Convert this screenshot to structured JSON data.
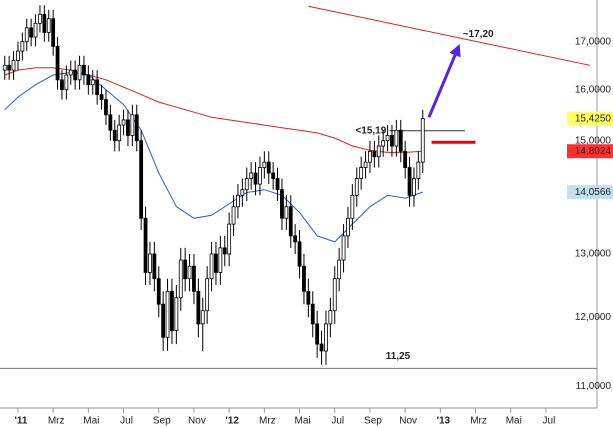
{
  "chart_data": {
    "type": "candlestick",
    "log_y": true,
    "xlim": [
      -1.02,
      32.9
    ],
    "ylim": [
      10.7,
      17.92
    ],
    "xticks": [
      {
        "value": 0,
        "label": "'11"
      },
      {
        "value": 2,
        "label": "Mrz"
      },
      {
        "value": 4,
        "label": "Mai"
      },
      {
        "value": 6,
        "label": "Jul"
      },
      {
        "value": 8,
        "label": "Sep"
      },
      {
        "value": 10,
        "label": "Nov"
      },
      {
        "value": 12,
        "label": "'12"
      },
      {
        "value": 14,
        "label": "Mrz"
      },
      {
        "value": 16,
        "label": "Mai"
      },
      {
        "value": 18,
        "label": "Jul"
      },
      {
        "value": 20,
        "label": "Sep"
      },
      {
        "value": 22,
        "label": "Nov"
      },
      {
        "value": 24,
        "label": "'13"
      },
      {
        "value": 26,
        "label": "Mrz"
      },
      {
        "value": 28,
        "label": "Mai"
      },
      {
        "value": 30,
        "label": "Jul"
      }
    ],
    "yticks": [
      {
        "value": 11,
        "label": "11,0000"
      },
      {
        "value": 12,
        "label": "12,0000"
      },
      {
        "value": 13,
        "label": "13,0000"
      },
      {
        "value": 14,
        "label": "14,0000"
      },
      {
        "value": 15,
        "label": "15,0000"
      },
      {
        "value": 16,
        "label": "16,0000"
      },
      {
        "value": 17,
        "label": "17,0000"
      }
    ],
    "x": [
      -0.75,
      -0.5,
      -0.25,
      0,
      0.25,
      0.5,
      0.75,
      1,
      1.25,
      1.5,
      1.75,
      2,
      2.25,
      2.5,
      2.75,
      3,
      3.25,
      3.5,
      3.75,
      4,
      4.25,
      4.5,
      4.75,
      5,
      5.25,
      5.5,
      5.75,
      6,
      6.25,
      6.5,
      6.75,
      7,
      7.25,
      7.5,
      7.75,
      8,
      8.25,
      8.5,
      8.75,
      9,
      9.25,
      9.5,
      9.75,
      10,
      10.25,
      10.5,
      10.75,
      11,
      11.25,
      11.5,
      11.75,
      12,
      12.25,
      12.5,
      12.75,
      13,
      13.25,
      13.5,
      13.75,
      14,
      14.25,
      14.5,
      14.75,
      15,
      15.25,
      15.5,
      15.75,
      16,
      16.25,
      16.5,
      16.75,
      17,
      17.25,
      17.5,
      17.75,
      18,
      18.25,
      18.5,
      18.75,
      19,
      19.25,
      19.5,
      19.75,
      20,
      20.25,
      20.5,
      20.75,
      21,
      21.25,
      21.5,
      21.75,
      22,
      22.25,
      22.5,
      22.75,
      23
    ],
    "open": [
      16.4,
      16.5,
      16.4,
      16.6,
      16.8,
      17.0,
      17.3,
      17.1,
      17.4,
      17.6,
      17.2,
      17.5,
      16.9,
      16.2,
      16.0,
      16.3,
      16.4,
      16.2,
      16.5,
      16.3,
      16.1,
      16.2,
      15.9,
      15.8,
      15.5,
      15.2,
      15.0,
      15.3,
      15.4,
      15.1,
      15.5,
      15.0,
      13.6,
      12.7,
      13.0,
      12.6,
      12.2,
      11.7,
      12.4,
      11.8,
      12.3,
      12.9,
      12.6,
      12.8,
      12.4,
      11.9,
      12.1,
      12.6,
      13.0,
      12.7,
      13.1,
      13.0,
      13.5,
      13.8,
      14.0,
      14.1,
      14.3,
      14.4,
      14.2,
      14.5,
      14.6,
      14.4,
      14.3,
      14.1,
      13.6,
      13.8,
      13.3,
      13.2,
      12.8,
      12.4,
      12.2,
      11.9,
      11.6,
      11.5,
      11.9,
      12.1,
      12.6,
      12.9,
      13.3,
      13.6,
      14.0,
      14.3,
      14.5,
      14.6,
      14.8,
      14.7,
      14.9,
      15.0,
      15.1,
      14.9,
      15.2,
      14.8,
      14.5,
      14.0,
      14.3,
      14.6
    ],
    "high": [
      16.7,
      16.7,
      16.8,
      17.0,
      17.2,
      17.5,
      17.5,
      17.6,
      17.8,
      17.8,
      17.7,
      17.7,
      17.1,
      16.4,
      16.5,
      16.6,
      16.6,
      16.7,
      16.7,
      16.5,
      16.4,
      16.4,
      16.1,
      16.0,
      15.7,
      15.4,
      15.5,
      15.6,
      15.6,
      15.7,
      15.7,
      15.2,
      13.8,
      13.2,
      13.2,
      12.8,
      12.4,
      12.6,
      12.6,
      12.5,
      13.1,
      13.1,
      13.0,
      13.0,
      12.6,
      12.3,
      12.8,
      13.2,
      13.2,
      13.3,
      13.3,
      13.7,
      14.0,
      14.2,
      14.3,
      14.5,
      14.6,
      14.6,
      14.7,
      14.8,
      14.8,
      14.6,
      14.5,
      14.3,
      14.0,
      14.0,
      13.5,
      13.4,
      13.0,
      12.6,
      12.4,
      12.1,
      11.8,
      12.1,
      12.3,
      12.8,
      13.1,
      13.5,
      13.8,
      14.2,
      14.5,
      14.7,
      14.8,
      15.0,
      15.0,
      15.1,
      15.2,
      15.3,
      15.3,
      15.4,
      15.4,
      15.0,
      14.7,
      14.5,
      14.8,
      15.6
    ],
    "low": [
      16.2,
      16.2,
      16.2,
      16.4,
      16.6,
      16.8,
      16.9,
      16.9,
      17.2,
      17.0,
      17.0,
      16.7,
      16.0,
      15.8,
      15.8,
      16.1,
      16.0,
      16.0,
      16.1,
      15.9,
      15.9,
      15.7,
      15.6,
      15.3,
      15.0,
      14.8,
      14.8,
      15.1,
      14.9,
      14.9,
      14.8,
      13.4,
      12.5,
      12.5,
      12.4,
      12.0,
      11.5,
      11.5,
      11.6,
      11.6,
      12.1,
      12.4,
      12.4,
      12.2,
      11.7,
      11.5,
      11.9,
      12.4,
      12.5,
      12.5,
      12.8,
      12.8,
      13.3,
      13.6,
      13.8,
      13.9,
      14.1,
      14.0,
      14.0,
      14.3,
      14.2,
      14.1,
      13.9,
      13.4,
      13.4,
      13.1,
      13.0,
      12.6,
      12.2,
      12.0,
      11.7,
      11.4,
      11.3,
      11.3,
      11.7,
      11.9,
      12.4,
      12.7,
      13.1,
      13.4,
      13.8,
      14.1,
      14.3,
      14.4,
      14.5,
      14.5,
      14.7,
      14.8,
      14.7,
      14.7,
      14.6,
      14.3,
      13.8,
      13.8,
      14.1,
      14.4
    ],
    "close": [
      16.5,
      16.4,
      16.6,
      16.8,
      17.0,
      17.3,
      17.1,
      17.4,
      17.6,
      17.2,
      17.5,
      16.9,
      16.2,
      16.0,
      16.3,
      16.4,
      16.2,
      16.5,
      16.3,
      16.1,
      16.2,
      15.9,
      15.8,
      15.5,
      15.2,
      15.0,
      15.3,
      15.4,
      15.1,
      15.5,
      15.0,
      13.6,
      12.7,
      13.0,
      12.6,
      12.2,
      11.7,
      12.4,
      11.8,
      12.3,
      12.9,
      12.6,
      12.8,
      12.4,
      11.9,
      12.1,
      12.6,
      13.0,
      12.7,
      13.1,
      13.0,
      13.5,
      13.8,
      14.0,
      14.1,
      14.3,
      14.4,
      14.2,
      14.5,
      14.6,
      14.4,
      14.3,
      14.1,
      13.6,
      13.8,
      13.3,
      13.2,
      12.8,
      12.4,
      12.2,
      11.9,
      11.6,
      11.5,
      11.9,
      12.1,
      12.6,
      12.9,
      13.3,
      13.6,
      14.0,
      14.3,
      14.5,
      14.6,
      14.8,
      14.7,
      14.9,
      15.0,
      15.1,
      14.9,
      15.2,
      14.8,
      14.5,
      14.0,
      14.3,
      14.6,
      15.425
    ],
    "moving_averages": [
      {
        "color": "#dd2020",
        "x": [
          -0.75,
          0,
          1,
          2,
          3,
          4,
          5,
          6,
          7,
          8,
          9,
          10,
          11,
          12,
          13,
          14,
          15,
          16,
          17,
          18,
          19,
          20,
          21,
          22,
          23
        ],
        "values": [
          16.3,
          16.4,
          16.45,
          16.45,
          16.4,
          16.3,
          16.2,
          16.05,
          15.9,
          15.75,
          15.65,
          15.55,
          15.45,
          15.4,
          15.35,
          15.3,
          15.25,
          15.2,
          15.15,
          15.05,
          14.9,
          14.82,
          14.78,
          14.78,
          14.8024
        ]
      },
      {
        "color": "#2d5fb8",
        "x": [
          -0.75,
          0,
          1,
          2,
          3,
          4,
          5,
          6,
          7,
          8,
          9,
          10,
          11,
          12,
          13,
          14,
          15,
          16,
          17,
          18,
          19,
          20,
          21,
          22,
          23
        ],
        "values": [
          15.6,
          15.85,
          16.1,
          16.3,
          16.35,
          16.3,
          16.0,
          15.7,
          15.2,
          14.4,
          13.8,
          13.6,
          13.65,
          13.85,
          14.05,
          14.1,
          14.0,
          13.7,
          13.3,
          13.2,
          13.5,
          13.8,
          14.0,
          13.95,
          14.0566
        ]
      }
    ],
    "trendline": {
      "color": "#dd2020",
      "x": [
        16.5,
        32.5
      ],
      "y": [
        17.78,
        16.5
      ]
    },
    "levels": [
      {
        "value": 11.25,
        "label": "11,25",
        "color": "#777777",
        "x": [
          -1.02,
          32.9
        ]
      },
      {
        "value": 15.19,
        "label": "<15,19",
        "color": "#333333",
        "x": [
          21.1,
          25.4
        ]
      }
    ],
    "support_line": {
      "value": 14.97,
      "color": "#ee0000",
      "x": [
        23.5,
        26.0
      ]
    },
    "arrow": {
      "label": "~17,20",
      "value": 17.2,
      "color": "#5522ee",
      "x": [
        23.35,
        25.1
      ],
      "y": [
        15.45,
        16.95
      ]
    },
    "value_tags": [
      {
        "value": 15.425,
        "label": "15,4250",
        "color": "#ffff66"
      },
      {
        "value": 14.8024,
        "label": "14,8024",
        "color": "#ff3030"
      },
      {
        "value": 14.0566,
        "label": "14,0566",
        "color": "#bfe0f0"
      }
    ]
  }
}
